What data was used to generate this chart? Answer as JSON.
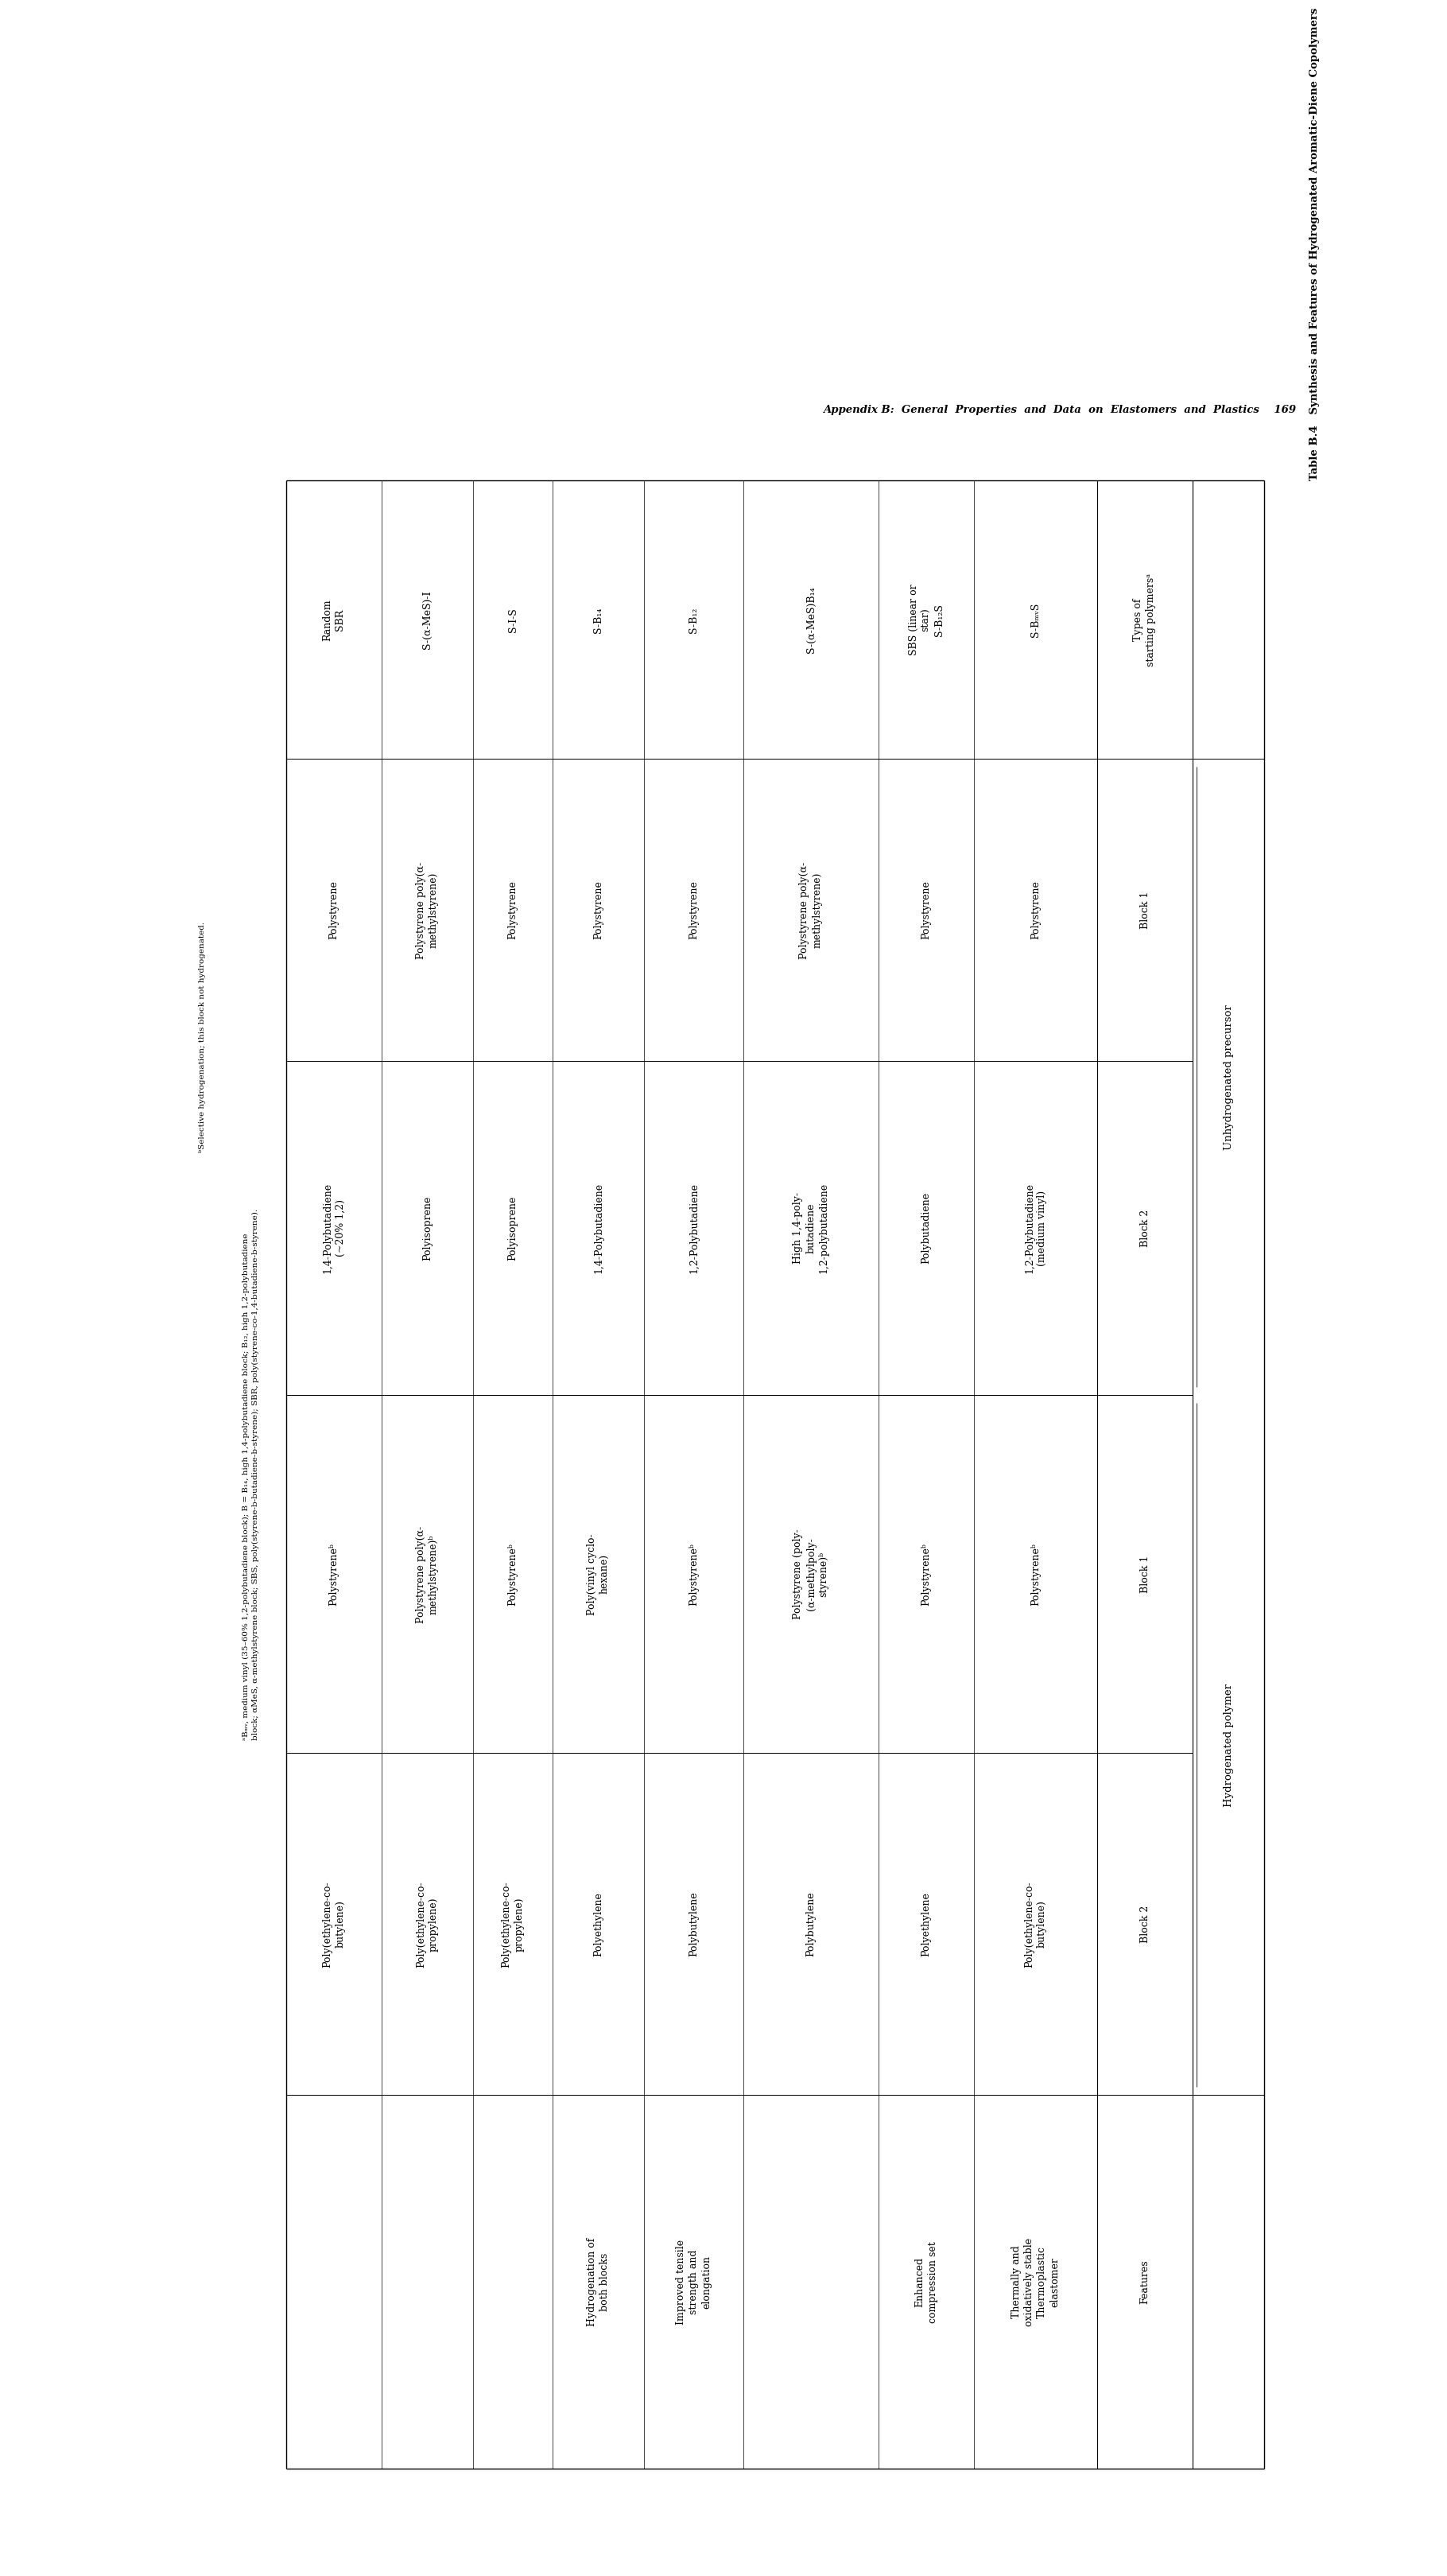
{
  "page_header": "Appendix B:  General  Properties  and  Data  on  Elastomers  and  Plastics    169",
  "table_title": "Table B.4   Synthesis and Features of Hydrogenated Aromatic-Diene Copolymers",
  "rows": [
    {
      "type": "S-BₘᵥS",
      "uh_block1": "Polystyrene",
      "uh_block2": "1,2-Polybutadiene\n(medium vinyl)",
      "h_block1": "Polystyreneᵇ",
      "h_block2": "Poly(ethylene-co-\nbutylene)",
      "features": "Thermally and\noxidatively stable\nThermoplastic\nelastomer"
    },
    {
      "type": "SBS (linear or\nstar)\nS-B₁₂S",
      "uh_block1": "Polystyrene",
      "uh_block2": "Polybutadiene",
      "h_block1": "Polystyreneᵇ",
      "h_block2": "Polyethylene",
      "features": "Enhanced\ncompression set"
    },
    {
      "type": "S-(α-MeS)B₁₄",
      "uh_block1": "Polystyrene poly(α-\nmethylstyrene)",
      "uh_block2": "High 1,4-poly-\nbutadiene\n1,2-polybutadiene",
      "h_block1": "Polystyrene (poly-\n(α-methylpoly-\nstyrene)ᵇ",
      "h_block2": "Polybutylene",
      "features": ""
    },
    {
      "type": "S-B₁₂",
      "uh_block1": "Polystyrene",
      "uh_block2": "1,2-Polybutadiene",
      "h_block1": "Polystyreneᵇ",
      "h_block2": "Polybutylene",
      "features": "Improved tensile\nstrength and\nelongation"
    },
    {
      "type": "S-B₁₄",
      "uh_block1": "Polystyrene",
      "uh_block2": "1,4-Polybutadiene",
      "h_block1": "Poly(vinyl cyclo-\nhexane)",
      "h_block2": "Polyethylene",
      "features": "Hydrogenation of\nboth blocks"
    },
    {
      "type": "S-I-S",
      "uh_block1": "Polystyrene",
      "uh_block2": "Polyisoprene",
      "h_block1": "Polystyreneᵇ",
      "h_block2": "Poly(ethylene-co-\npropylene)",
      "features": ""
    },
    {
      "type": "S-(α-MeS)-I",
      "uh_block1": "Polystyrene poly(α-\nmethylstyrene)",
      "uh_block2": "Polyisoprene",
      "h_block1": "Polystyrene poly(α-\nmethylstyrene)ᵇ",
      "h_block2": "Poly(ethylene-co-\npropylene)",
      "features": ""
    },
    {
      "type": "Random\nSBR",
      "uh_block1": "Polystyrene",
      "uh_block2": "1,4-Polybutadiene\n(~20% 1,2)",
      "h_block1": "Polystyreneᵇ",
      "h_block2": "Poly(ethylene-co-\nbutylene)",
      "features": ""
    }
  ],
  "footnote1": "ᵃBₘᵥ, medium vinyl (35–60% 1,2-polybutadiene block); B = B₁₄, high 1,4-polybutadiene block; B₁₂, high 1,2-polybutadiene\nblock; αMeS, α-methylstyrene block; SBS, poly(styrene-b-butadiene-b-styrene); SBR, poly(styrene-co-1,4-butadiene-b-styrene).",
  "footnote2": "ᵇSelective hydrogenation; this block not hydrogenated.",
  "bg_color": "#ffffff",
  "text_color": "#000000"
}
